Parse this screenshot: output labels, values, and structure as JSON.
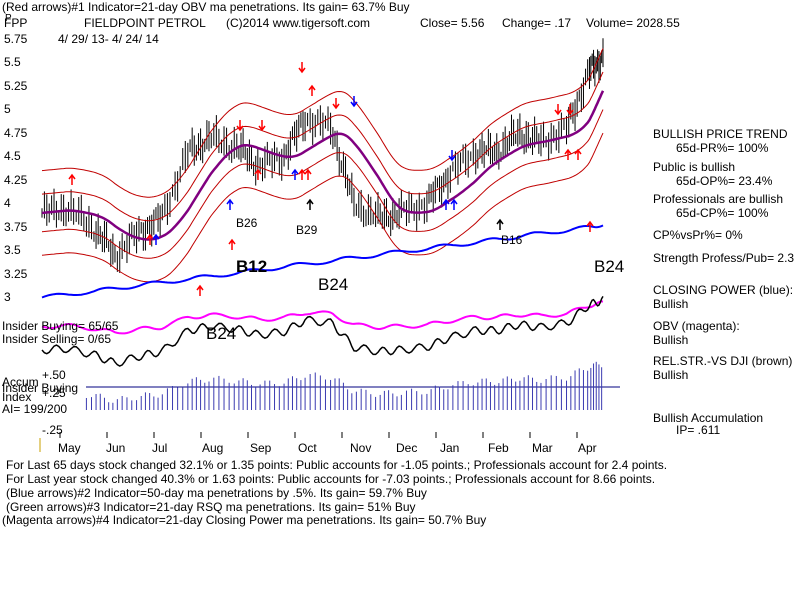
{
  "header": {
    "line1": "(Red arrows)#1 Indicator=21-day OBV ma penetrations. Its gain= 63.7% Buy",
    "ticker": "FPP",
    "name": "FIELDPOINT PETROL",
    "copyright": "(C)2014 www.tigersoft.com",
    "close": "Close= 5.56",
    "change": "Change= .17",
    "volume": "Volume= 2028.55",
    "date_range": "4/ 29/ 13- 4/ 24/ 14",
    "p_label": "P"
  },
  "price_axis": [
    "5.75",
    "5.5",
    "5.25",
    "5",
    "4.75",
    "4.5",
    "4.25",
    "4",
    "3.75",
    "3.5",
    "3.25",
    "3"
  ],
  "accum_axis": [
    "+.50",
    "+.25",
    "-.25"
  ],
  "months": [
    "May",
    "Jun",
    "Jul",
    "Aug",
    "Sep",
    "Oct",
    "Nov",
    "Dec",
    "Jan",
    "Feb",
    "Mar",
    "Apr"
  ],
  "signals": [
    "B26",
    "B29",
    "B16",
    "B12",
    "B24",
    "B24",
    "B24"
  ],
  "left_labels": {
    "insider_buying": "Insider Buying= 65/65",
    "insider_selling": "Insider Selling= 0/65",
    "accum": "Accum",
    "insider_buying2": "Insider Buying",
    "index": "Index",
    "ai": "AI= 199/200"
  },
  "right_panel": [
    "BULLISH PRICE TREND",
    "65d-PR%= 100%",
    "Public is bullish",
    "65d-OP%= 23.4%",
    "Professionals are bullish",
    "65d-CP%= 100%",
    "CP%vsPr%=  0%",
    "Strength Profess/Pub= 2.3",
    "CLOSING POWER (blue):",
    "Bullish",
    "OBV (magenta):",
    "Bullish",
    "REL.STR.-VS DJI (brown)",
    "Bullish",
    "Bullish Accumulation",
    "IP=  .611"
  ],
  "footer": [
    "For Last 65 days stock changed  32.1% or  1.35 points:  Public accounts for -1.05 points.;  Professionals account for  2.4 points.",
    "For Last year stock changed  40.3% or  1.63 points:  Public accounts for -7.03 points.;  Professionals account for  8.66 points.",
    "(Blue arrows)#2 Indicator=50-day ma penetrations by .5%. Its gain= 59.7% Buy",
    "(Green arrows)#3 Indicator=21-day RSQ ma penetrations. Its gain= 51% Buy",
    "(Magenta arrows)#4 Indicator=21-day Closing Power ma penetrations. Its gain= 50.7% Buy"
  ],
  "colors": {
    "price_bars": "#000000",
    "band": "#c00000",
    "ma": "#800080",
    "closing_power": "#0000ff",
    "obv": "#ff00ff",
    "accum_bars": "#3a3ab0",
    "relstr": "#000000"
  },
  "chart_data": {
    "type": "line",
    "x": [
      "2013-04-29",
      "2013-05-15",
      "2013-06-01",
      "2013-06-15",
      "2013-07-01",
      "2013-07-15",
      "2013-08-01",
      "2013-08-15",
      "2013-09-01",
      "2013-09-15",
      "2013-10-01",
      "2013-10-15",
      "2013-11-01",
      "2013-11-15",
      "2013-12-01",
      "2013-12-15",
      "2014-01-01",
      "2014-01-15",
      "2014-02-01",
      "2014-02-15",
      "2014-03-01",
      "2014-03-15",
      "2014-04-01",
      "2014-04-15",
      "2014-04-24"
    ],
    "series": [
      {
        "values": [
          3.9,
          3.95,
          3.75,
          3.45,
          3.7,
          3.85,
          4.55,
          4.7,
          4.6,
          4.4,
          4.5,
          4.9,
          4.8,
          4.0,
          3.85,
          3.9,
          4.0,
          4.3,
          4.55,
          4.55,
          4.75,
          4.65,
          4.8,
          5.4,
          5.56
        ]
      }
    ],
    "ylim": [
      3.0,
      5.75
    ]
  }
}
